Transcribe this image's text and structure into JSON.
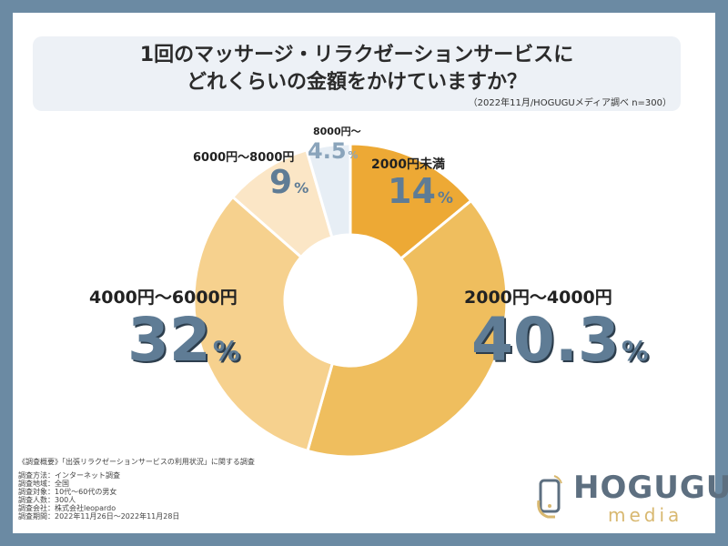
{
  "title_line1": "1回のマッサージ・リラクゼーションサービスに",
  "title_line2": "どれくらいの金額をかけていますか？",
  "source_note": "（2022年11月/HOGUGUメディア調べ n=300）",
  "chart_data": {
    "type": "pie",
    "categories": [
      "2000円未満",
      "2000円〜4000円",
      "4000円〜6000円",
      "6000円〜8000円",
      "8000円〜"
    ],
    "values": [
      14,
      40.3,
      32,
      9,
      4.5
    ],
    "value_labels": [
      "14",
      "40.3",
      "32",
      "9",
      "4.5"
    ],
    "unit": "%",
    "colors": [
      "#eda935",
      "#efbe5e",
      "#f6d18e",
      "#fbe6c6",
      "#e7eef5"
    ]
  },
  "survey": {
    "heading": "《調査概要》「出張リラクゼーションサービスの利用状況」に関する調査",
    "rows": [
      "調査方法：インターネット調査",
      "調査地域：全国",
      "調査対象：10代〜60代の男女",
      "調査人数：300人",
      "調査会社：株式会社leopardo",
      "調査期間：2022年11月26日〜2022年11月28日"
    ]
  },
  "logo": {
    "name": "HOGUGU",
    "sub": "media"
  }
}
